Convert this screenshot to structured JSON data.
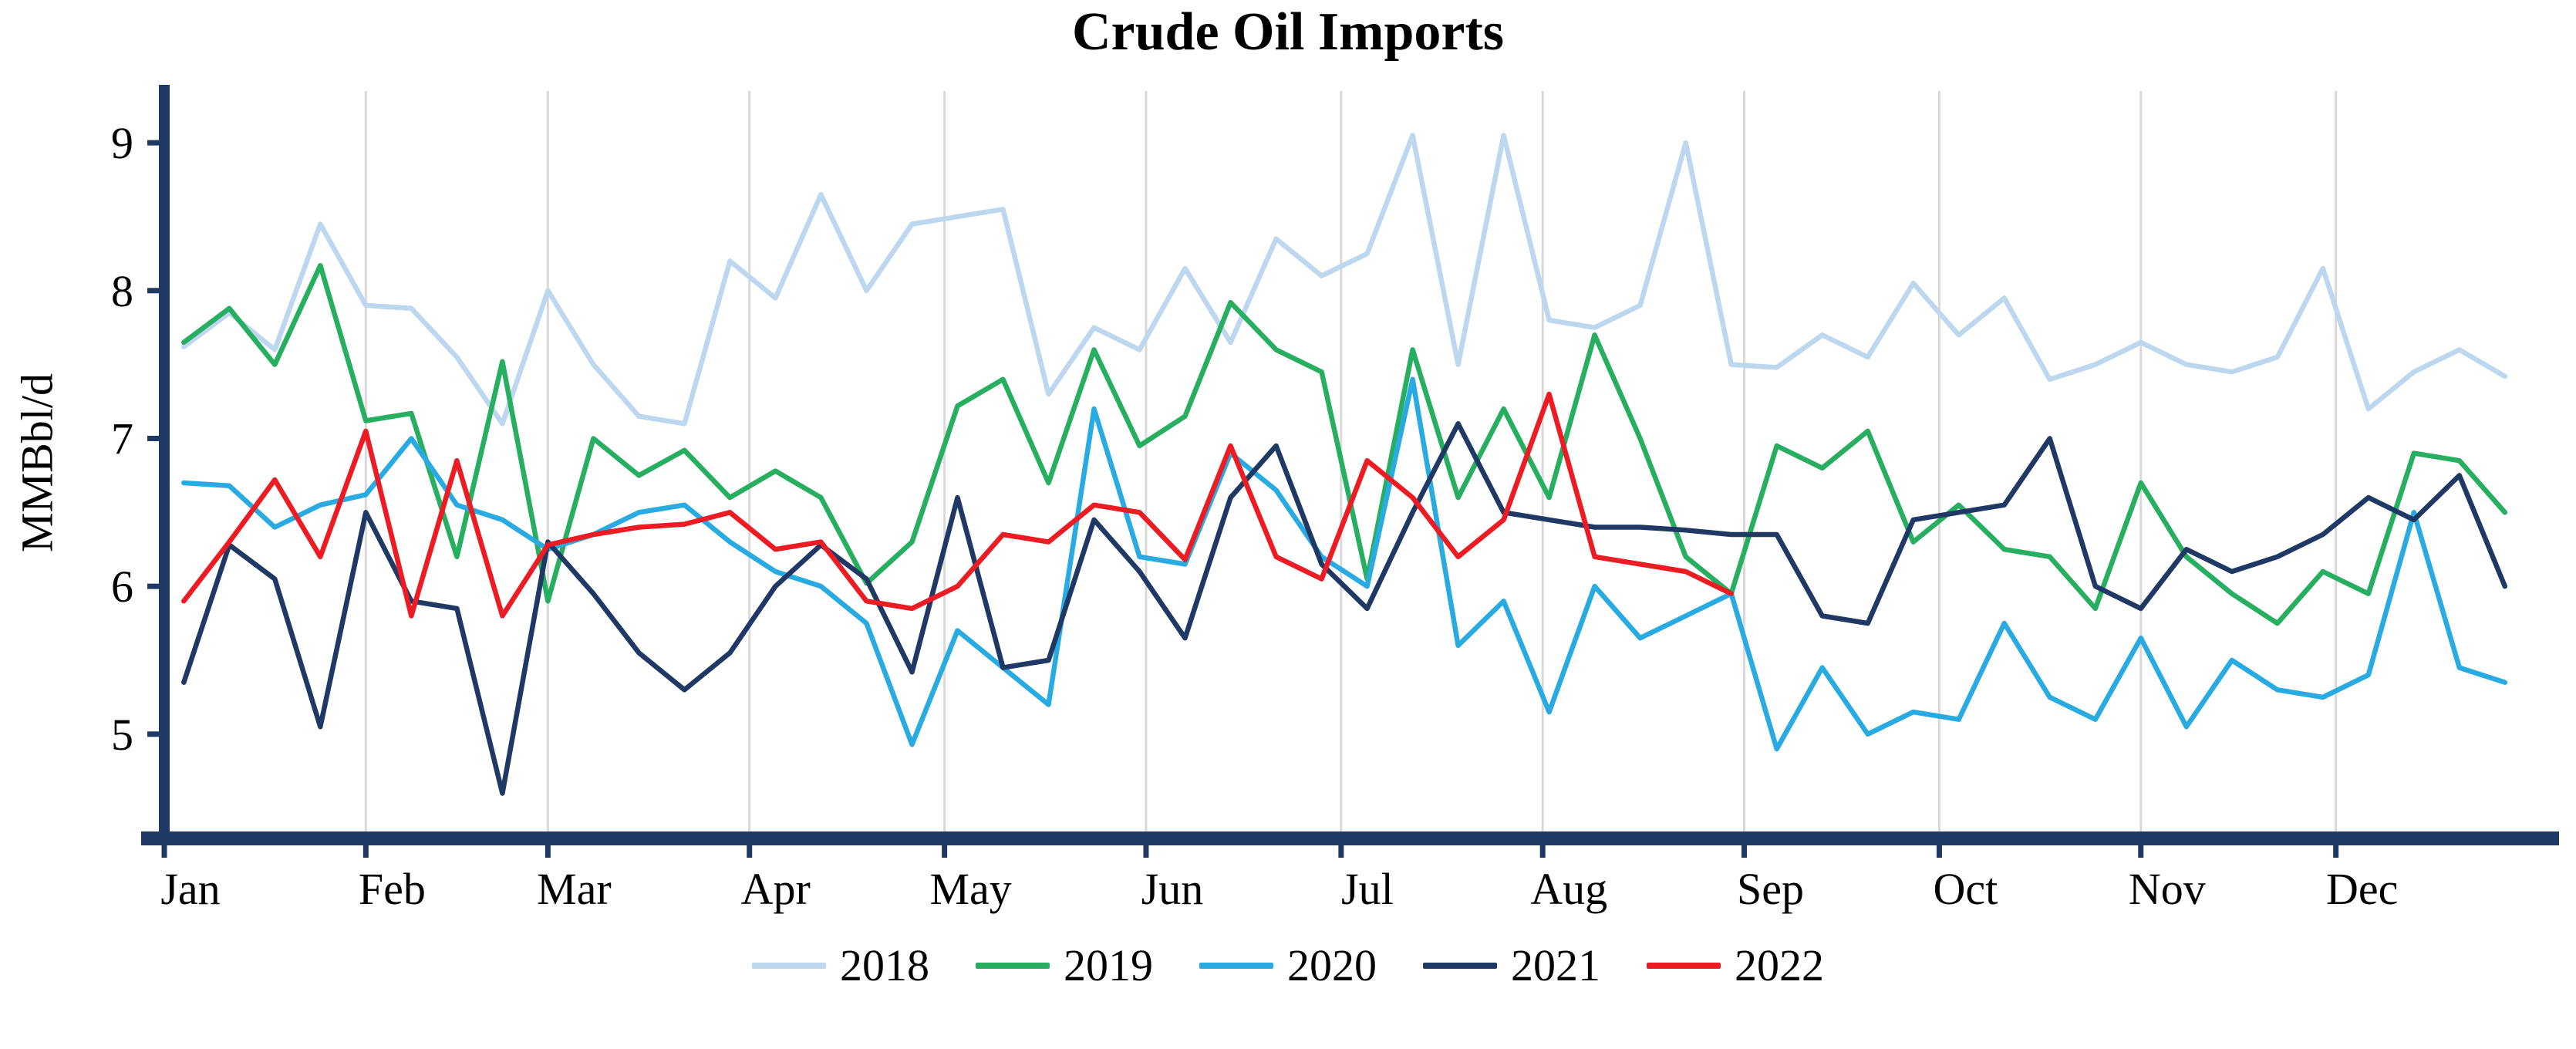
{
  "chart_data": {
    "type": "line",
    "title": "Crude Oil Imports",
    "ylabel": "MMBbl/d",
    "xlabel": "",
    "x_unit": "weekly observations across one calendar year",
    "x_ticks": [
      "Jan",
      "Feb",
      "Mar",
      "Apr",
      "May",
      "Jun",
      "Jul",
      "Aug",
      "Sep",
      "Oct",
      "Nov",
      "Dec"
    ],
    "month_start_days": [
      0,
      31,
      59,
      90,
      120,
      151,
      181,
      212,
      243,
      273,
      304,
      334
    ],
    "days_in_year": 365,
    "ylim": [
      4.3,
      9.35
    ],
    "y_ticks": [
      5,
      6,
      7,
      8,
      9
    ],
    "grid": "vertical gridlines at month boundaries",
    "legend_position": "bottom-center",
    "axis_color": "#1f3864",
    "grid_color": "#d9d9d9",
    "series": [
      {
        "name": "2018",
        "color": "#bdd7ee",
        "values": [
          7.62,
          7.85,
          7.6,
          8.45,
          7.9,
          7.88,
          7.55,
          7.1,
          8.0,
          7.5,
          7.15,
          7.1,
          8.2,
          7.95,
          8.65,
          8.0,
          8.45,
          8.5,
          8.55,
          7.3,
          7.75,
          7.6,
          8.15,
          7.65,
          8.35,
          8.1,
          8.25,
          9.05,
          7.5,
          9.05,
          7.8,
          7.75,
          7.9,
          9.0,
          7.5,
          7.48,
          7.7,
          7.55,
          8.05,
          7.7,
          7.95,
          7.4,
          7.5,
          7.65,
          7.5,
          7.45,
          7.55,
          8.15,
          7.2,
          7.45,
          7.6,
          7.42
        ]
      },
      {
        "name": "2019",
        "color": "#27ae60",
        "values": [
          7.65,
          7.88,
          7.5,
          8.17,
          7.12,
          7.17,
          6.2,
          7.52,
          5.9,
          7.0,
          6.75,
          6.92,
          6.6,
          6.78,
          6.6,
          6.02,
          6.3,
          7.22,
          7.4,
          6.7,
          7.6,
          6.95,
          7.15,
          7.92,
          7.6,
          7.45,
          6.05,
          7.6,
          6.6,
          7.2,
          6.6,
          7.7,
          7.0,
          6.2,
          5.95,
          6.95,
          6.8,
          7.05,
          6.3,
          6.55,
          6.25,
          6.2,
          5.85,
          6.7,
          6.2,
          5.95,
          5.75,
          6.1,
          5.95,
          6.9,
          6.85,
          6.5
        ]
      },
      {
        "name": "2020",
        "color": "#29abe2",
        "values": [
          6.7,
          6.68,
          6.4,
          6.55,
          6.62,
          7.0,
          6.55,
          6.45,
          6.25,
          6.35,
          6.5,
          6.55,
          6.3,
          6.1,
          6.0,
          5.75,
          4.93,
          5.7,
          5.45,
          5.2,
          7.2,
          6.2,
          6.15,
          6.9,
          6.65,
          6.2,
          6.0,
          7.4,
          5.6,
          5.9,
          5.15,
          6.0,
          5.65,
          5.8,
          5.95,
          4.9,
          5.45,
          5.0,
          5.15,
          5.1,
          5.75,
          5.25,
          5.1,
          5.65,
          5.05,
          5.5,
          5.3,
          5.25,
          5.4,
          6.5,
          5.45,
          5.35
        ]
      },
      {
        "name": "2021",
        "color": "#1f3864",
        "values": [
          5.35,
          6.28,
          6.05,
          5.05,
          6.5,
          5.9,
          5.85,
          4.6,
          6.3,
          5.95,
          5.55,
          5.3,
          5.55,
          6.0,
          6.28,
          6.05,
          5.42,
          6.6,
          5.45,
          5.5,
          6.45,
          6.1,
          5.65,
          6.6,
          6.95,
          6.15,
          5.85,
          6.5,
          7.1,
          6.5,
          6.45,
          6.4,
          6.4,
          6.38,
          6.35,
          6.35,
          5.8,
          5.75,
          6.45,
          6.5,
          6.55,
          7.0,
          6.0,
          5.85,
          6.25,
          6.1,
          6.2,
          6.35,
          6.6,
          6.45,
          6.75,
          6.0
        ]
      },
      {
        "name": "2022",
        "color": "#ec1c24",
        "values": [
          5.9,
          6.3,
          6.72,
          6.2,
          7.05,
          5.8,
          6.85,
          5.8,
          6.28,
          6.35,
          6.4,
          6.42,
          6.5,
          6.25,
          6.3,
          5.9,
          5.85,
          6.0,
          6.35,
          6.3,
          6.55,
          6.5,
          6.18,
          6.95,
          6.2,
          6.05,
          6.85,
          6.6,
          6.2,
          6.45,
          7.3,
          6.2,
          6.15,
          6.1,
          5.95
        ]
      }
    ]
  }
}
